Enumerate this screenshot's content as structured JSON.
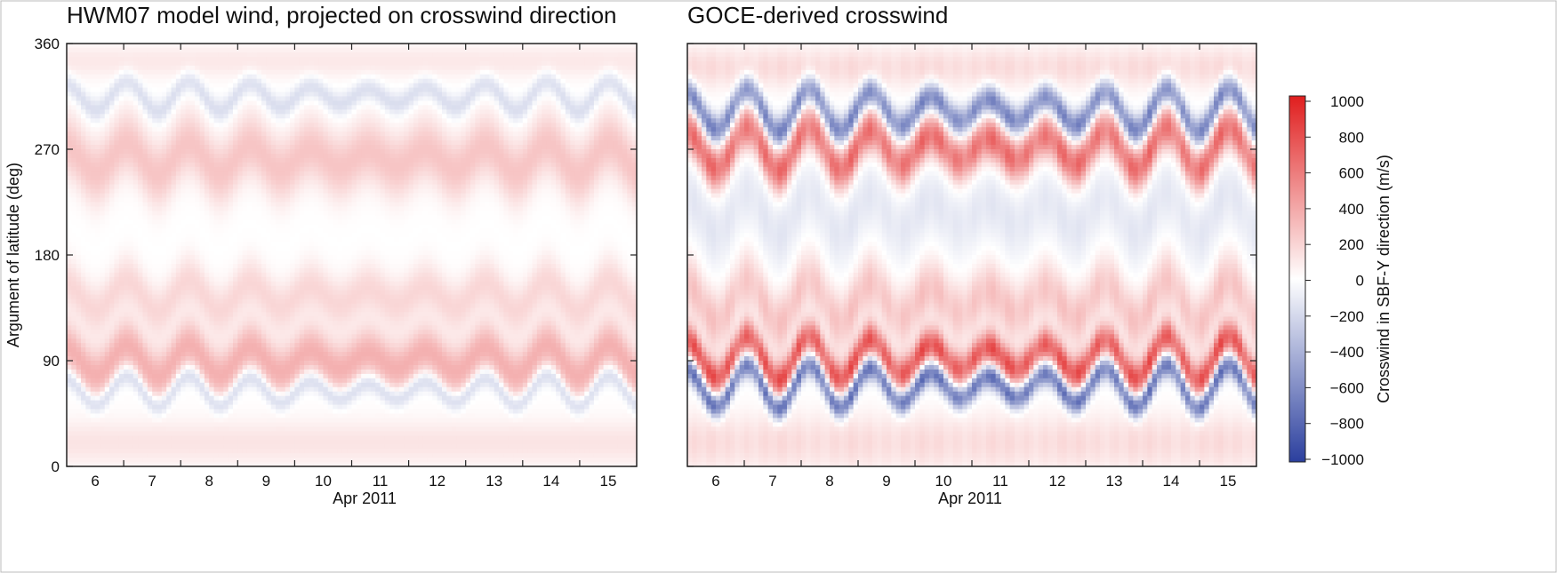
{
  "figure": {
    "x_axis_label": "Apr 2011",
    "day_ticks": [
      "6",
      "7",
      "8",
      "9",
      "10",
      "11",
      "12",
      "13",
      "14",
      "15"
    ],
    "lat_ticks": [
      "0",
      "90",
      "180",
      "270",
      "360"
    ],
    "ylabel": "Argument of latitude (deg)"
  },
  "chart_data": [
    {
      "type": "heatmap",
      "title": "HWM07 model wind, projected on crosswind direction",
      "xlabel": "Apr 2011",
      "ylabel": "Argument of latitude (deg)",
      "x_range_days": [
        5.5,
        15.5
      ],
      "ylim": [
        0,
        360
      ],
      "bands": [
        {
          "center_deg": 90,
          "peak_mps": 350,
          "width_deg": 22
        },
        {
          "center_deg": 145,
          "peak_mps": 180,
          "width_deg": 22
        },
        {
          "center_deg": 262,
          "peak_mps": 260,
          "width_deg": 28
        },
        {
          "center_deg": 65,
          "peak_mps": -250,
          "width_deg": 9
        },
        {
          "center_deg": 315,
          "peak_mps": -180,
          "width_deg": 10
        },
        {
          "center_deg": 20,
          "peak_mps": 120,
          "width_deg": 20
        },
        {
          "center_deg": 345,
          "peak_mps": 100,
          "width_deg": 15
        }
      ]
    },
    {
      "type": "heatmap",
      "title": "GOCE-derived crosswind",
      "xlabel": "Apr 2011",
      "x_range_days": [
        5.5,
        15.5
      ],
      "ylim": [
        0,
        360
      ],
      "bands": [
        {
          "center_deg": 92,
          "peak_mps": 700,
          "width_deg": 14
        },
        {
          "center_deg": 68,
          "peak_mps": -700,
          "width_deg": 10
        },
        {
          "center_deg": 270,
          "peak_mps": 600,
          "width_deg": 18
        },
        {
          "center_deg": 303,
          "peak_mps": -600,
          "width_deg": 12
        },
        {
          "center_deg": 140,
          "peak_mps": 250,
          "width_deg": 25
        },
        {
          "center_deg": 215,
          "peak_mps": -120,
          "width_deg": 30
        },
        {
          "center_deg": 20,
          "peak_mps": 150,
          "width_deg": 25
        },
        {
          "center_deg": 340,
          "peak_mps": 150,
          "width_deg": 18
        }
      ]
    }
  ],
  "colorbar": {
    "label": "Crosswind in SBF-Y direction (m/s)",
    "ticks": [
      "1000",
      "800",
      "600",
      "400",
      "200",
      "0",
      "−200",
      "−400",
      "−600",
      "−800",
      "−1000"
    ],
    "range": [
      -1000,
      1000
    ],
    "colors": {
      "neg": "#2b3f9e",
      "zero": "#ffffff",
      "pos": "#e01e1e"
    }
  }
}
